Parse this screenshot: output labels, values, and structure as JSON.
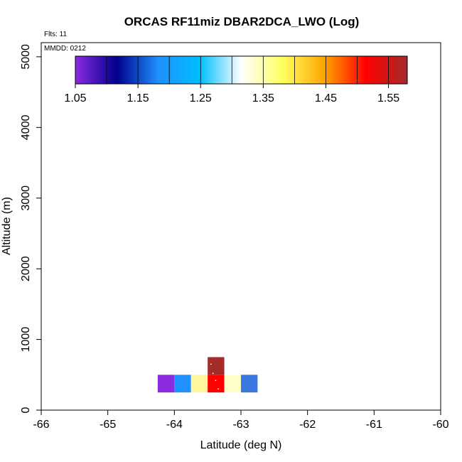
{
  "chart_data": {
    "type": "heatmap",
    "title": "ORCAS RF11miz DBAR2DCA_LWO (Log)",
    "flights_label": "Flts: 11",
    "date_label": "MMDD: 0212",
    "xlabel": "Latitude (deg N)",
    "ylabel": "Altitude (m)",
    "xlim": [
      -66,
      -60
    ],
    "ylim": [
      0,
      5200
    ],
    "x_ticks": [
      "-66",
      "-65",
      "-64",
      "-63",
      "-62",
      "-61",
      "-60"
    ],
    "y_ticks": [
      "0",
      "1000",
      "2000",
      "3000",
      "4000",
      "5000"
    ],
    "colorbar": {
      "range": [
        1.05,
        1.58
      ],
      "tick_values": [
        1.05,
        1.15,
        1.25,
        1.35,
        1.45,
        1.55
      ],
      "tick_labels": [
        "1.05",
        "1.15",
        "1.25",
        "1.35",
        "1.45",
        "1.55"
      ],
      "stops": [
        "#8a2be2",
        "#00008b",
        "#1e90ff",
        "#00bfff",
        "#ffffff",
        "#ffff60",
        "#ffa500",
        "#ff0000",
        "#a52a2a"
      ]
    },
    "cells": [
      {
        "lat0": -64.25,
        "lat1": -64.0,
        "alt0": 250,
        "alt1": 500,
        "color": "#8a2be2"
      },
      {
        "lat0": -64.0,
        "lat1": -63.75,
        "alt0": 250,
        "alt1": 500,
        "color": "#1e90ff"
      },
      {
        "lat0": -63.75,
        "lat1": -63.5,
        "alt0": 250,
        "alt1": 500,
        "color": "#fff59d"
      },
      {
        "lat0": -63.5,
        "lat1": -63.25,
        "alt0": 250,
        "alt1": 500,
        "color": "#ff0000"
      },
      {
        "lat0": -63.5,
        "lat1": -63.25,
        "alt0": 500,
        "alt1": 750,
        "color": "#a52a2a"
      },
      {
        "lat0": -63.25,
        "lat1": -63.0,
        "alt0": 250,
        "alt1": 500,
        "color": "#ffffc8"
      },
      {
        "lat0": -63.0,
        "lat1": -62.75,
        "alt0": 250,
        "alt1": 500,
        "color": "#3a78e0"
      }
    ],
    "track": [
      {
        "lat": -63.45,
        "alt": 650
      },
      {
        "lat": -63.42,
        "alt": 520
      },
      {
        "lat": -63.38,
        "alt": 420
      },
      {
        "lat": -63.34,
        "alt": 300
      }
    ],
    "grid": false
  }
}
